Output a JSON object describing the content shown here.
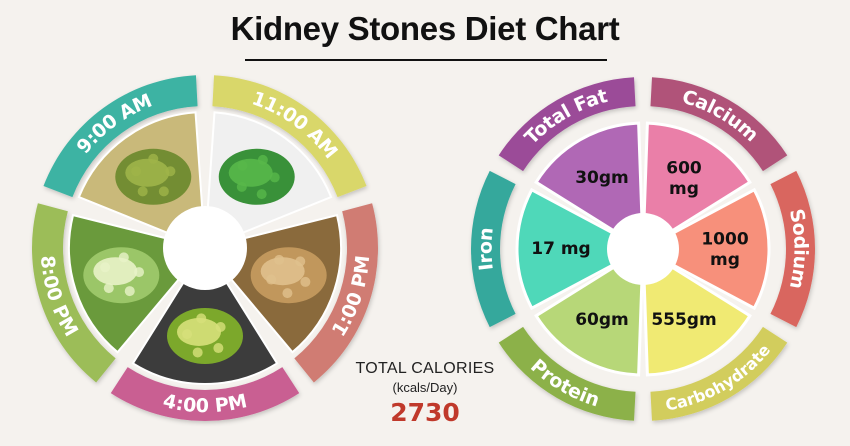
{
  "title": "Kidney Stones Diet Chart",
  "meal_times": [
    {
      "label": "9:00 AM",
      "color": "#3eb3a3"
    },
    {
      "label": "11:00 AM",
      "color": "#d9d76a"
    },
    {
      "label": "1:00 PM",
      "color": "#d07c73"
    },
    {
      "label": "4:00 PM",
      "color": "#c95e92"
    },
    {
      "label": "8:00 PM",
      "color": "#9cbd58"
    }
  ],
  "food_icons": [
    "spinach-paratha",
    "green-peas",
    "chapati",
    "green-tea",
    "cucumber-salad"
  ],
  "nutrients": [
    {
      "name": "Total Fat",
      "value": "30gm",
      "color": "#b068b5",
      "ring_color": "#9b4c98"
    },
    {
      "name": "Calcium",
      "value": "600 mg",
      "color": "#ea7fa8",
      "ring_color": "#b05379"
    },
    {
      "name": "Sodium",
      "value": "1000 mg",
      "color": "#f7907b",
      "ring_color": "#d9665e"
    },
    {
      "name": "Carbohydrate",
      "value": "555gm",
      "color": "#f0ea73",
      "ring_color": "#d2cd5d"
    },
    {
      "name": "Protein",
      "value": "60gm",
      "color": "#b7d778",
      "ring_color": "#8cb14a"
    },
    {
      "name": "Iron",
      "value": "17 mg",
      "color": "#4fd8b9",
      "ring_color": "#35a89c"
    }
  ],
  "calories": {
    "title": "TOTAL CALORIES",
    "unit": "(kcals/Day)",
    "value": "2730"
  }
}
